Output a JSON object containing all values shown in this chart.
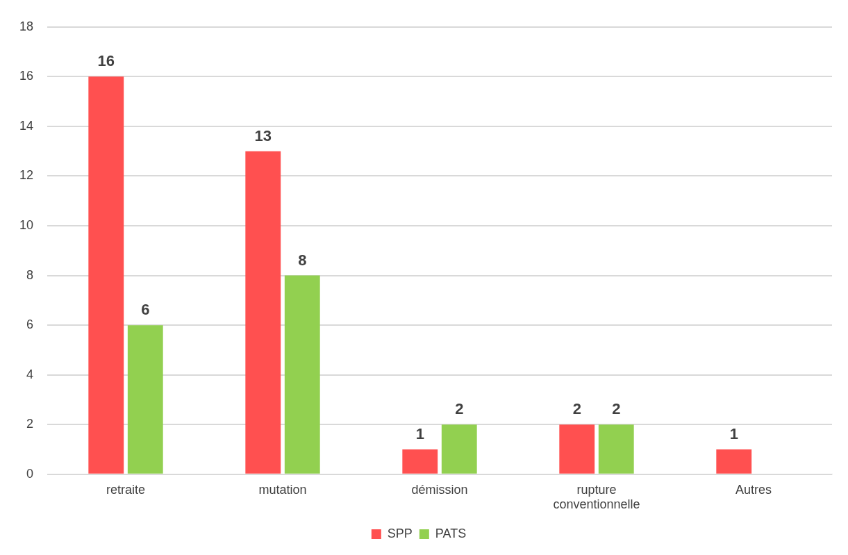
{
  "chart_data": {
    "type": "bar",
    "categories": [
      "retraite",
      "mutation",
      "démission",
      "rupture conventionnelle",
      "Autres"
    ],
    "series": [
      {
        "name": "SPP",
        "color": "#ff5050",
        "values": [
          16,
          13,
          1,
          2,
          1
        ]
      },
      {
        "name": "PATS",
        "color": "#92d050",
        "values": [
          6,
          8,
          2,
          2,
          null
        ]
      }
    ],
    "ylim": [
      0,
      18
    ],
    "yticks": [
      0,
      2,
      4,
      6,
      8,
      10,
      12,
      14,
      16,
      18
    ],
    "grid": "y",
    "legend": "bottom",
    "data_labels": true
  }
}
